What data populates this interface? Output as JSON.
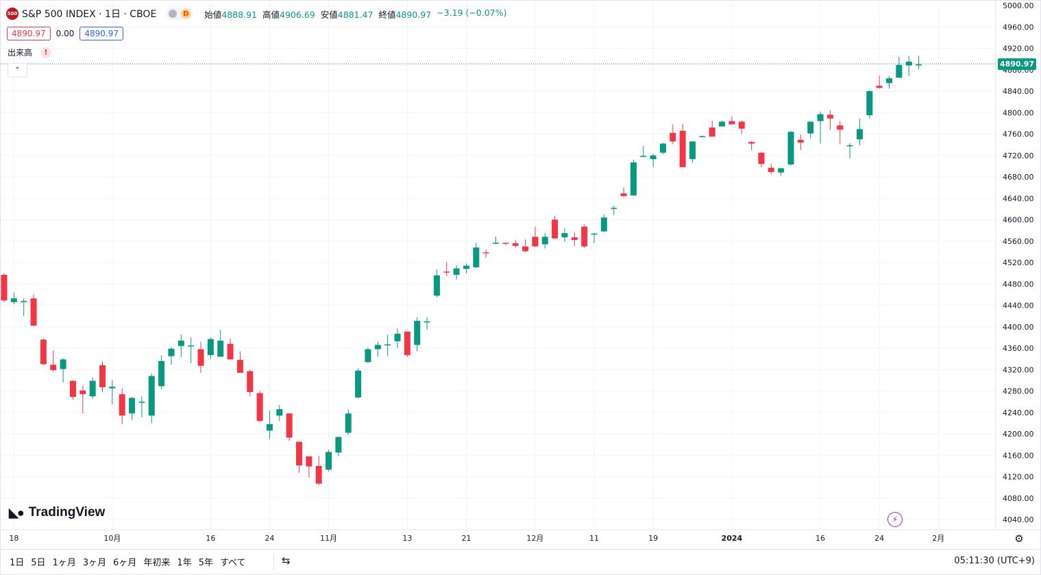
{
  "header": {
    "badge": "500",
    "symbol_title": "S&P 500 INDEX · 1日 · CBOE",
    "market_status": "D",
    "ohlc": {
      "open_label": "始値",
      "open": "4888.91",
      "high_label": "高値",
      "high": "4906.69",
      "low_label": "安値",
      "low": "4881.47",
      "close_label": "終値",
      "close": "4890.97",
      "change": "−3.19 (−0.07%)"
    }
  },
  "quote": {
    "bid": "4890.97",
    "spread": "0.00",
    "ask": "4890.97"
  },
  "volume": {
    "label": "出来高",
    "warn": "!"
  },
  "collapse": "⌃",
  "logo": {
    "text": "TradingView"
  },
  "range_buttons": [
    "1日",
    "5日",
    "1ヶ月",
    "3ヶ月",
    "6ヶ月",
    "年初来",
    "1年",
    "5年",
    "すべて"
  ],
  "clock": "05:11:30 (UTC+9)",
  "colors": {
    "up": "#089981",
    "down": "#f23645",
    "grid": "#f0f3fa",
    "axis_text": "#131722",
    "last_price_bg": "#089981"
  },
  "chart_data": {
    "type": "candlestick",
    "last_price": 4890.97,
    "last_price_label": "4890.97",
    "ylim": [
      4020,
      5000
    ],
    "y_ticks": [
      4040,
      4080,
      4120,
      4160,
      4200,
      4240,
      4280,
      4320,
      4360,
      4400,
      4440,
      4480,
      4520,
      4560,
      4600,
      4640,
      4680,
      4720,
      4760,
      4800,
      4840,
      4880,
      4920,
      4960,
      5000
    ],
    "y_tick_labels": [
      "4040.00",
      "4080.00",
      "4120.00",
      "4160.00",
      "4200.00",
      "4240.00",
      "4280.00",
      "4320.00",
      "4360.00",
      "4400.00",
      "4440.00",
      "4480.00",
      "4520.00",
      "4560.00",
      "4600.00",
      "4640.00",
      "4680.00",
      "4720.00",
      "4760.00",
      "4800.00",
      "4840.00",
      "4880.00",
      "4920.00",
      "4960.00",
      "5000.00"
    ],
    "x_ticks": [
      {
        "i": 1,
        "label": "18"
      },
      {
        "i": 11,
        "label": "10月"
      },
      {
        "i": 21,
        "label": "16"
      },
      {
        "i": 27,
        "label": "24"
      },
      {
        "i": 33,
        "label": "11月"
      },
      {
        "i": 41,
        "label": "13"
      },
      {
        "i": 47,
        "label": "21"
      },
      {
        "i": 54,
        "label": "12月"
      },
      {
        "i": 60,
        "label": "11"
      },
      {
        "i": 66,
        "label": "19"
      },
      {
        "i": 74,
        "label": "2024"
      },
      {
        "i": 83,
        "label": "16"
      },
      {
        "i": 89,
        "label": "24"
      },
      {
        "i": 95,
        "label": "2月"
      }
    ],
    "candles": [
      [
        4497,
        4500,
        4446,
        4449
      ],
      [
        4446,
        4464,
        4442,
        4453
      ],
      [
        4446,
        4453,
        4420,
        4448
      ],
      [
        4453,
        4460,
        4401,
        4402
      ],
      [
        4376,
        4378,
        4329,
        4330
      ],
      [
        4329,
        4356,
        4316,
        4319
      ],
      [
        4321,
        4341,
        4296,
        4339
      ],
      [
        4299,
        4300,
        4264,
        4269
      ],
      [
        4281,
        4290,
        4238,
        4274
      ],
      [
        4270,
        4305,
        4265,
        4299
      ],
      [
        4328,
        4335,
        4278,
        4287
      ],
      [
        4285,
        4300,
        4255,
        4288
      ],
      [
        4274,
        4285,
        4218,
        4234
      ],
      [
        4238,
        4269,
        4226,
        4267
      ],
      [
        4259,
        4270,
        4231,
        4260
      ],
      [
        4234,
        4313,
        4220,
        4308
      ],
      [
        4289,
        4346,
        4284,
        4336
      ],
      [
        4345,
        4362,
        4329,
        4359
      ],
      [
        4364,
        4386,
        4343,
        4374
      ],
      [
        4365,
        4380,
        4332,
        4365
      ],
      [
        4358,
        4372,
        4314,
        4327
      ],
      [
        4347,
        4380,
        4340,
        4377
      ],
      [
        4344,
        4394,
        4345,
        4374
      ],
      [
        4368,
        4378,
        4340,
        4339
      ],
      [
        4338,
        4354,
        4316,
        4314
      ],
      [
        4317,
        4320,
        4270,
        4278
      ],
      [
        4276,
        4280,
        4222,
        4224
      ],
      [
        4206,
        4244,
        4190,
        4218
      ],
      [
        4234,
        4254,
        4224,
        4246
      ],
      [
        4238,
        4238,
        4187,
        4193
      ],
      [
        4185,
        4186,
        4127,
        4141
      ],
      [
        4158,
        4158,
        4118,
        4139
      ],
      [
        4140,
        4159,
        4104,
        4107
      ],
      [
        4133,
        4170,
        4130,
        4166
      ],
      [
        4165,
        4195,
        4158,
        4194
      ],
      [
        4202,
        4246,
        4198,
        4238
      ],
      [
        4268,
        4322,
        4266,
        4318
      ],
      [
        4334,
        4361,
        4332,
        4358
      ],
      [
        4358,
        4372,
        4344,
        4366
      ],
      [
        4367,
        4385,
        4345,
        4367
      ],
      [
        4373,
        4397,
        4360,
        4387
      ],
      [
        4391,
        4391,
        4343,
        4347
      ],
      [
        4366,
        4418,
        4354,
        4411
      ],
      [
        4409,
        4418,
        4394,
        4410
      ],
      [
        4458,
        4507,
        4455,
        4496
      ],
      [
        4503,
        4521,
        4495,
        4502
      ],
      [
        4497,
        4515,
        4488,
        4509
      ],
      [
        4508,
        4518,
        4500,
        4514
      ],
      [
        4511,
        4557,
        4510,
        4548
      ],
      [
        4539,
        4544,
        4529,
        4538
      ],
      [
        4556,
        4568,
        4554,
        4557
      ],
      [
        4557,
        4557,
        4552,
        4556
      ],
      [
        4556,
        4562,
        4548,
        4551
      ],
      [
        4550,
        4563,
        4539,
        4541
      ],
      [
        4568,
        4587,
        4549,
        4550
      ],
      [
        4554,
        4575,
        4546,
        4568
      ],
      [
        4600,
        4607,
        4565,
        4565
      ],
      [
        4567,
        4584,
        4559,
        4575
      ],
      [
        4567,
        4576,
        4551,
        4562
      ],
      [
        4587,
        4591,
        4547,
        4550
      ],
      [
        4572,
        4575,
        4556,
        4574
      ],
      [
        4578,
        4610,
        4577,
        4604
      ],
      [
        4621,
        4626,
        4609,
        4622
      ],
      [
        4649,
        4660,
        4642,
        4644
      ],
      [
        4645,
        4712,
        4645,
        4707
      ],
      [
        4718,
        4738,
        4718,
        4719
      ],
      [
        4713,
        4723,
        4698,
        4720
      ],
      [
        4725,
        4743,
        4722,
        4742
      ],
      [
        4762,
        4778,
        4741,
        4746
      ],
      [
        4766,
        4779,
        4699,
        4698
      ],
      [
        4713,
        4747,
        4706,
        4746
      ],
      [
        4754,
        4757,
        4754,
        4756
      ],
      [
        4772,
        4785,
        4758,
        4755
      ],
      [
        4774,
        4785,
        4775,
        4783
      ],
      [
        4784,
        4793,
        4780,
        4778
      ],
      [
        4783,
        4785,
        4760,
        4770
      ],
      [
        4745,
        4747,
        4730,
        4742
      ],
      [
        4725,
        4726,
        4698,
        4704
      ],
      [
        4697,
        4704,
        4685,
        4689
      ],
      [
        4688,
        4697,
        4682,
        4696
      ],
      [
        4703,
        4766,
        4701,
        4764
      ],
      [
        4749,
        4759,
        4730,
        4744
      ],
      [
        4761,
        4780,
        4752,
        4783
      ],
      [
        4784,
        4802,
        4742,
        4797
      ],
      [
        4796,
        4804,
        4768,
        4789
      ],
      [
        4776,
        4784,
        4741,
        4768
      ],
      [
        4739,
        4743,
        4714,
        4739
      ],
      [
        4750,
        4789,
        4739,
        4769
      ],
      [
        4795,
        4842,
        4789,
        4840
      ],
      [
        4850,
        4869,
        4845,
        4846
      ],
      [
        4855,
        4868,
        4845,
        4864
      ],
      [
        4865,
        4904,
        4865,
        4889
      ],
      [
        4888,
        4906,
        4868,
        4895
      ],
      [
        4888,
        4906,
        4881,
        4890
      ]
    ]
  }
}
